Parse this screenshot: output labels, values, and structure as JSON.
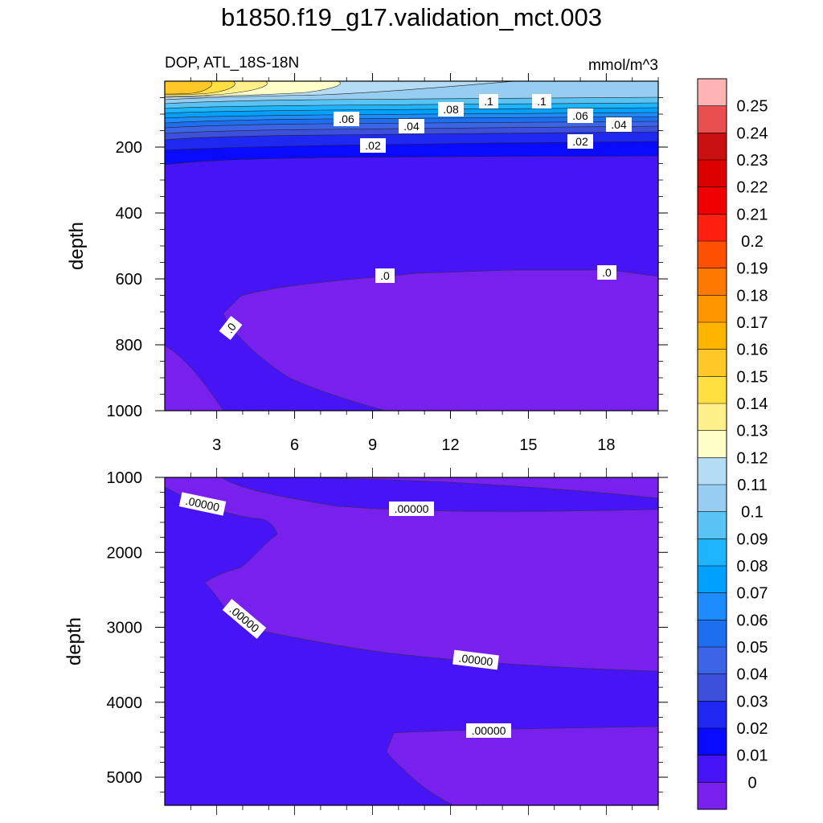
{
  "title": "b1850.f19_g17.validation_mct.003",
  "chart_data": {
    "type": "contour",
    "title": "b1850.f19_g17.validation_mct.003",
    "variable": "DOP, ATL_18S-18N",
    "units": "mmol/m^3",
    "colorbar": {
      "labels": [
        "0.25",
        "0.24",
        "0.23",
        "0.22",
        "0.21",
        "0.2",
        "0.19",
        "0.18",
        "0.17",
        "0.16",
        "0.15",
        "0.14",
        "0.13",
        "0.12",
        "0.11",
        "0.1",
        "0.09",
        "0.08",
        "0.07",
        "0.06",
        "0.05",
        "0.04",
        "0.03",
        "0.02",
        "0.01",
        "0"
      ],
      "levels": [
        0.25,
        0.24,
        0.23,
        0.22,
        0.21,
        0.2,
        0.19,
        0.18,
        0.17,
        0.16,
        0.15,
        0.14,
        0.13,
        0.12,
        0.11,
        0.1,
        0.09,
        0.08,
        0.07,
        0.06,
        0.05,
        0.04,
        0.03,
        0.02,
        0.01,
        0
      ],
      "colors": [
        "#ffb4b4",
        "#e85050",
        "#c81010",
        "#dc0000",
        "#f00000",
        "#ff2010",
        "#ff5000",
        "#ff7800",
        "#ff9600",
        "#ffb400",
        "#ffc828",
        "#ffe040",
        "#fff08c",
        "#ffffc8",
        "#b4dcf5",
        "#96cdf0",
        "#5ac3f5",
        "#1eb4ff",
        "#00a0ff",
        "#1e8cff",
        "#1e6ef0",
        "#3c64e6",
        "#3c50dc",
        "#1e28f0",
        "#0a0aff",
        "#4614f5",
        "#7820ee"
      ]
    },
    "panels": [
      {
        "name": "upper",
        "ylabel": "depth",
        "xlim": [
          1,
          20
        ],
        "ylim": [
          1000,
          0
        ],
        "xticks": [
          "3",
          "6",
          "9",
          "12",
          "15",
          "18"
        ],
        "yticks": [
          "200",
          "400",
          "600",
          "800",
          "1000"
        ],
        "contour_labels": [
          ".06",
          ".08",
          ".1",
          ".1",
          ".06",
          ".04",
          ".04",
          ".02",
          ".02",
          ".0",
          ".0",
          ".0"
        ]
      },
      {
        "name": "lower",
        "ylabel": "depth",
        "xlim": [
          1,
          20
        ],
        "ylim": [
          5375,
          1000
        ],
        "yticks": [
          "1000",
          "2000",
          "3000",
          "4000",
          "5000"
        ],
        "contour_labels": [
          ".00000",
          ".00000",
          ".00000",
          ".00000",
          ".00000"
        ]
      }
    ]
  }
}
